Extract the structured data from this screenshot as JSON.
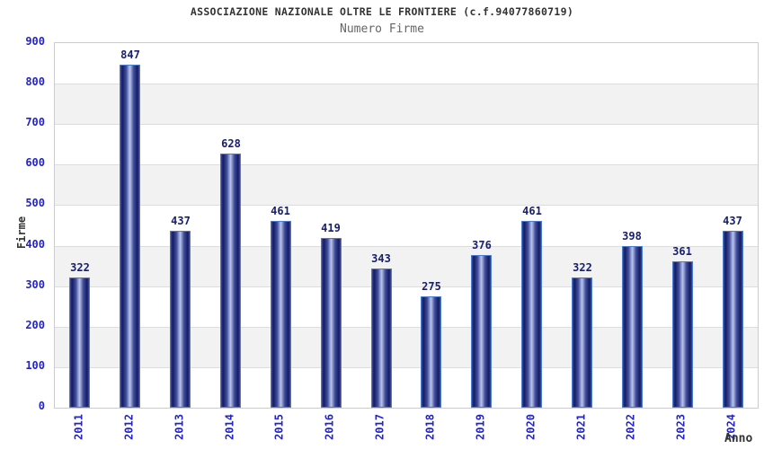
{
  "chart_data": {
    "type": "bar",
    "title": "ASSOCIAZIONE NAZIONALE OLTRE LE FRONTIERE (c.f.94077860719)",
    "subtitle": "Numero Firme",
    "xlabel": "Anno",
    "ylabel": "Firme",
    "categories": [
      "2011",
      "2012",
      "2013",
      "2014",
      "2015",
      "2016",
      "2017",
      "2018",
      "2019",
      "2020",
      "2021",
      "2022",
      "2023",
      "2024"
    ],
    "values": [
      322,
      847,
      437,
      628,
      461,
      419,
      343,
      275,
      376,
      461,
      322,
      398,
      361,
      437
    ],
    "ylim": [
      0,
      900
    ],
    "y_ticks": [
      0,
      100,
      200,
      300,
      400,
      500,
      600,
      700,
      800,
      900
    ],
    "grid": "horizontal alternating bands every 100 units",
    "legend": "none",
    "bar_labels_shown": true
  },
  "colors": {
    "title": "#333333",
    "subtitle": "#666666",
    "tick_label": "#2323cc",
    "value_label": "#18206e",
    "band_alt": "#f2f2f2",
    "grid_line": "#dddddd",
    "plot_border": "#cccccc",
    "bar_edge_dark": "#141c62",
    "bar_mid": "#3e4c9a",
    "bar_center_light": "#bcc5ec",
    "bar_border": "#4a7cd0",
    "axis_title": "#333333"
  }
}
